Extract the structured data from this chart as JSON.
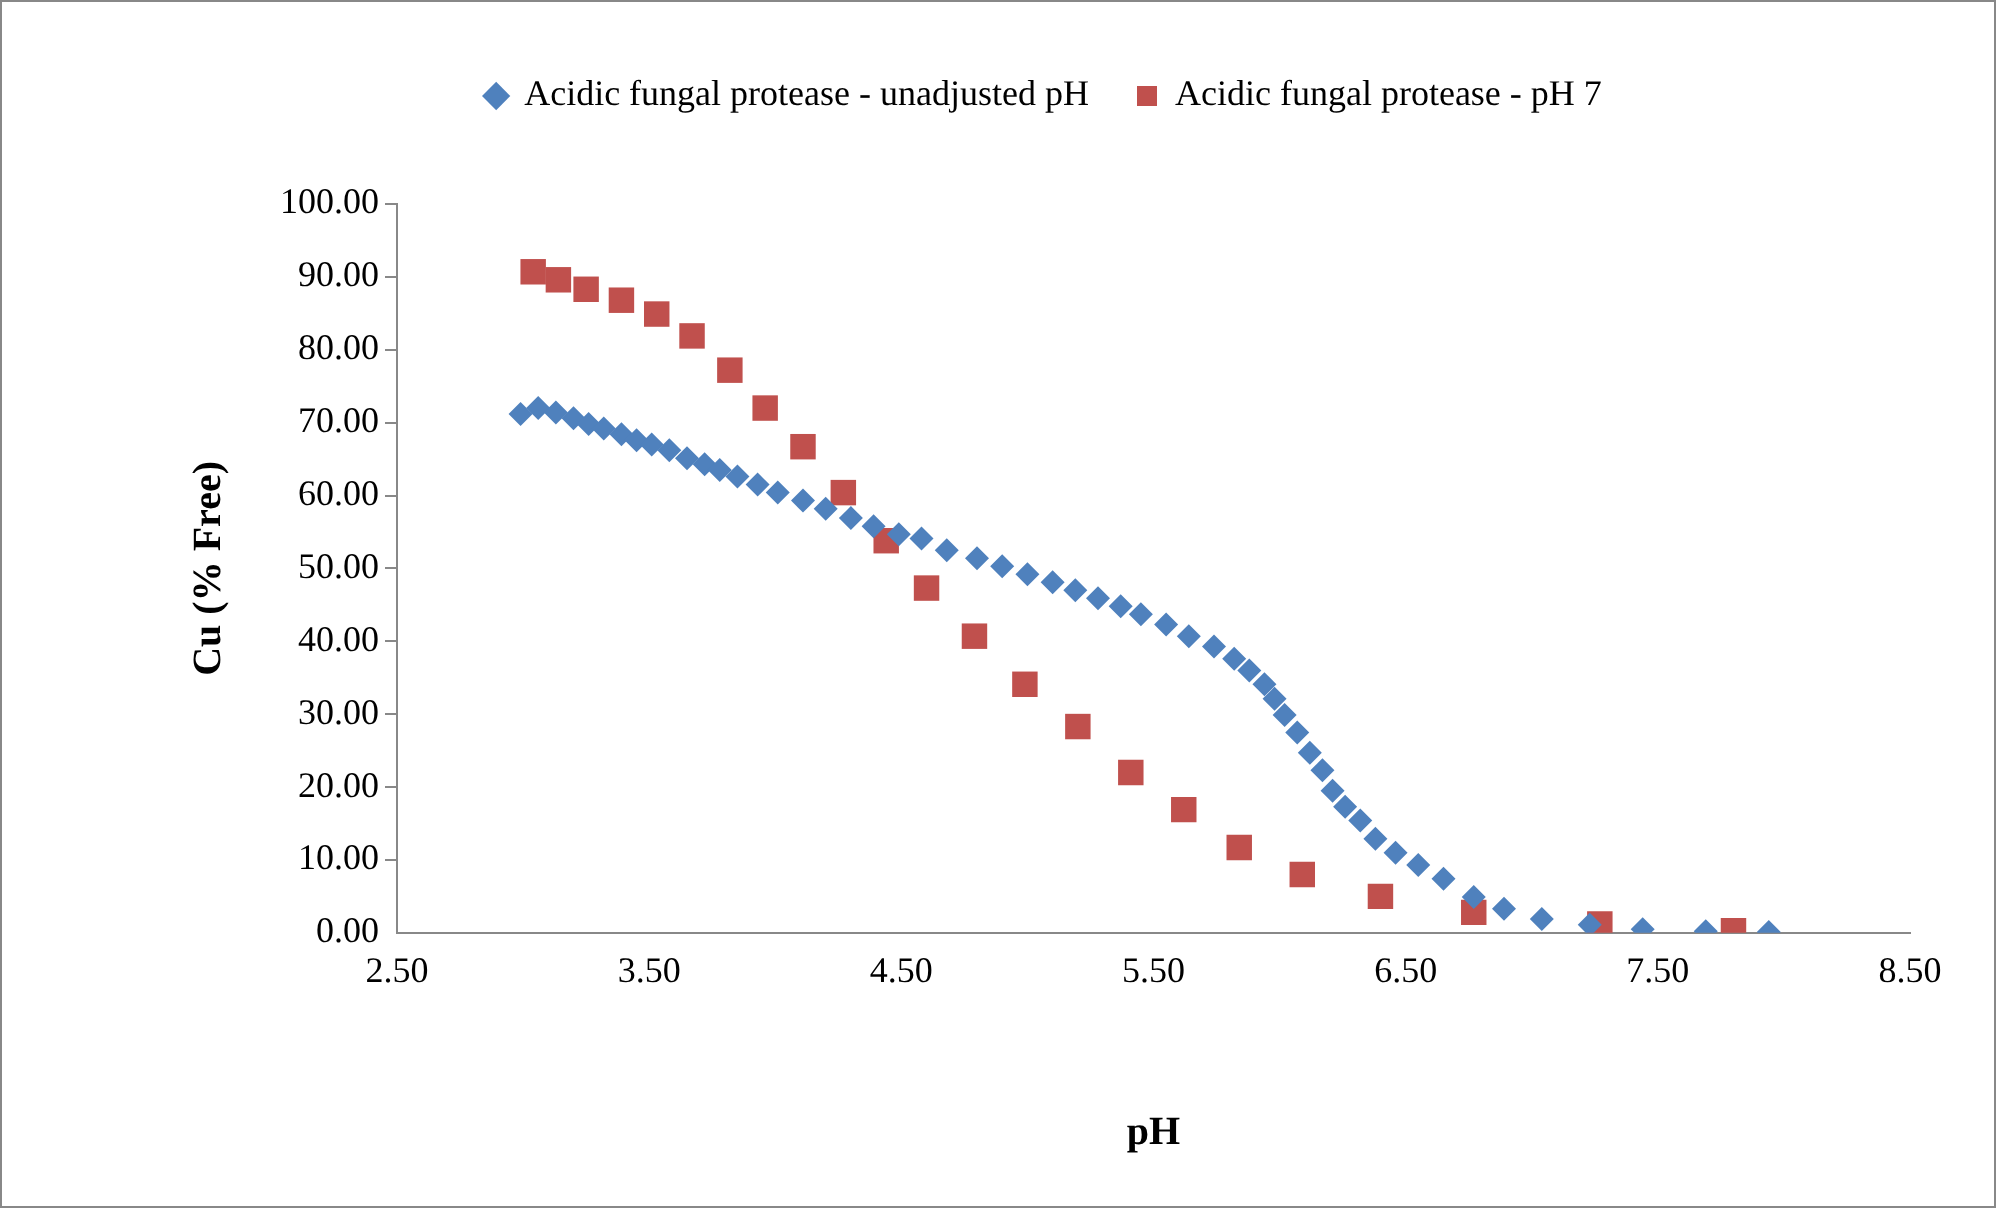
{
  "chart_data": {
    "type": "scatter",
    "xlabel": "pH",
    "ylabel": "Cu (% Free)",
    "xlim": [
      2.5,
      8.5
    ],
    "xticks": [
      {
        "value": 2.5,
        "label": "2.50"
      },
      {
        "value": 3.5,
        "label": "3.50"
      },
      {
        "value": 4.5,
        "label": "4.50"
      },
      {
        "value": 5.5,
        "label": "5.50"
      },
      {
        "value": 6.5,
        "label": "6.50"
      },
      {
        "value": 7.5,
        "label": "7.50"
      },
      {
        "value": 8.5,
        "label": "8.50"
      }
    ],
    "ylim": [
      0,
      100
    ],
    "yticks": [
      {
        "value": 0,
        "label": "0.00"
      },
      {
        "value": 10,
        "label": "10.00"
      },
      {
        "value": 20,
        "label": "20.00"
      },
      {
        "value": 30,
        "label": "30.00"
      },
      {
        "value": 40,
        "label": "40.00"
      },
      {
        "value": 50,
        "label": "50.00"
      },
      {
        "value": 60,
        "label": "60.00"
      },
      {
        "value": 70,
        "label": "70.00"
      },
      {
        "value": 80,
        "label": "80.00"
      },
      {
        "value": 90,
        "label": "90.00"
      },
      {
        "value": 100,
        "label": "100.00"
      }
    ],
    "grid": false,
    "legend": "top",
    "series": [
      {
        "name": "Acidic fungal protease - unadjusted pH",
        "color": "#4f81bd",
        "marker": "diamond",
        "x": [
          2.99,
          3.06,
          3.13,
          3.2,
          3.26,
          3.32,
          3.39,
          3.45,
          3.51,
          3.58,
          3.65,
          3.72,
          3.78,
          3.85,
          3.93,
          4.01,
          4.11,
          4.2,
          4.3,
          4.39,
          4.49,
          4.58,
          4.68,
          4.8,
          4.9,
          5.0,
          5.1,
          5.19,
          5.28,
          5.37,
          5.45,
          5.55,
          5.64,
          5.74,
          5.82,
          5.88,
          5.94,
          5.98,
          6.02,
          6.07,
          6.12,
          6.17,
          6.21,
          6.26,
          6.32,
          6.38,
          6.46,
          6.55,
          6.65,
          6.77,
          6.89,
          7.04,
          7.23,
          7.44,
          7.69,
          7.94
        ],
        "values": [
          71.2,
          72.0,
          71.4,
          70.6,
          69.8,
          69.2,
          68.4,
          67.6,
          67.0,
          66.2,
          65.1,
          64.3,
          63.5,
          62.6,
          61.5,
          60.4,
          59.3,
          58.2,
          56.9,
          55.8,
          54.7,
          54.1,
          52.5,
          51.4,
          50.3,
          49.2,
          48.1,
          47.0,
          45.9,
          44.8,
          43.7,
          42.3,
          40.7,
          39.3,
          37.6,
          36.0,
          34.1,
          32.1,
          29.9,
          27.5,
          24.7,
          22.3,
          19.5,
          17.3,
          15.4,
          12.9,
          11.0,
          9.3,
          7.4,
          4.9,
          3.3,
          1.9,
          1.1,
          0.5,
          0.2,
          0.1
        ]
      },
      {
        "name": "Acidic fungal protease - pH 7",
        "color": "#c0504d",
        "marker": "square",
        "x": [
          3.04,
          3.14,
          3.25,
          3.39,
          3.53,
          3.67,
          3.82,
          3.96,
          4.11,
          4.27,
          4.44,
          4.6,
          4.79,
          4.99,
          5.2,
          5.41,
          5.62,
          5.84,
          6.09,
          6.4,
          6.77,
          7.27,
          7.8
        ],
        "values": [
          90.7,
          89.6,
          88.3,
          86.8,
          84.9,
          81.9,
          77.2,
          72.0,
          66.7,
          60.4,
          53.8,
          47.3,
          40.7,
          34.1,
          28.3,
          22.0,
          16.9,
          11.7,
          8.0,
          5.0,
          2.8,
          1.2,
          0.3
        ]
      }
    ]
  }
}
